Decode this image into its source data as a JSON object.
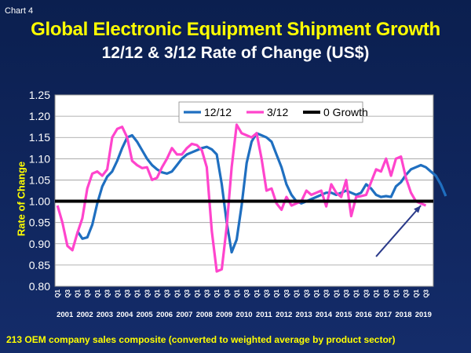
{
  "header": {
    "chart_label": "Chart 4",
    "title": "Global Electronic Equipment Shipment Growth",
    "subtitle": "12/12 & 3/12 Rate of Change (US$)"
  },
  "footnote": "213 OEM company sales composite (converted to weighted average by product sector)",
  "colors": {
    "s1212": "#1f6fc0",
    "s312": "#ff44cc",
    "zero": "#000000",
    "arrow": "#2a3a8a",
    "plot_bg": "#ffffff"
  },
  "chart_data": {
    "type": "line",
    "ylabel": "Rate of Change",
    "ylim": [
      0.8,
      1.25
    ],
    "yticks": [
      "0.80",
      "0.85",
      "0.90",
      "0.95",
      "1.00",
      "1.05",
      "1.10",
      "1.15",
      "1.20",
      "1.25"
    ],
    "quarter_labels": [
      "Q1",
      "Q3"
    ],
    "years": [
      "2001",
      "2002",
      "2003",
      "2004",
      "2005",
      "2006",
      "2007",
      "2008",
      "2009",
      "2010",
      "2011",
      "2012",
      "2013",
      "2014",
      "2015",
      "2016",
      "2017",
      "2018",
      "2019"
    ],
    "x_start": "2001 Q1",
    "legend": {
      "position": "top-right"
    },
    "series": [
      {
        "name": "12/12",
        "color_key": "s1212",
        "start_index": 4,
        "values": [
          0.93,
          0.912,
          0.915,
          0.945,
          0.995,
          1.035,
          1.058,
          1.07,
          1.095,
          1.125,
          1.15,
          1.155,
          1.14,
          1.12,
          1.1,
          1.085,
          1.075,
          1.068,
          1.065,
          1.07,
          1.085,
          1.1,
          1.11,
          1.115,
          1.12,
          1.125,
          1.128,
          1.122,
          1.11,
          1.04,
          0.95,
          0.88,
          0.91,
          0.99,
          1.09,
          1.14,
          1.16,
          1.155,
          1.15,
          1.14,
          1.11,
          1.08,
          1.04,
          1.015,
          1.0,
          0.995,
          1.0,
          1.005,
          1.01,
          1.015,
          1.02,
          1.02,
          1.015,
          1.02,
          1.025,
          1.02,
          1.015,
          1.02,
          1.04,
          1.03,
          1.015,
          1.01,
          1.012,
          1.01,
          1.035,
          1.045,
          1.062,
          1.075,
          1.08,
          1.085,
          1.08,
          1.07,
          1.06,
          1.04,
          1.012
        ]
      },
      {
        "name": "3/12",
        "color_key": "s312",
        "start_index": 0,
        "values": [
          0.99,
          0.95,
          0.895,
          0.885,
          0.925,
          0.96,
          1.03,
          1.065,
          1.07,
          1.06,
          1.075,
          1.15,
          1.17,
          1.175,
          1.15,
          1.095,
          1.085,
          1.078,
          1.08,
          1.05,
          1.055,
          1.08,
          1.1,
          1.125,
          1.11,
          1.11,
          1.125,
          1.135,
          1.132,
          1.12,
          1.08,
          0.93,
          0.835,
          0.84,
          0.94,
          1.08,
          1.18,
          1.16,
          1.155,
          1.15,
          1.16,
          1.1,
          1.025,
          1.03,
          0.995,
          0.98,
          1.01,
          0.99,
          0.995,
          1.0,
          1.025,
          1.015,
          1.02,
          1.025,
          0.988,
          1.04,
          1.02,
          1.01,
          1.05,
          0.965,
          1.01,
          1.012,
          1.015,
          1.045,
          1.075,
          1.07,
          1.1,
          1.06,
          1.1,
          1.105,
          1.055,
          1.02,
          1.0,
          0.995,
          0.99
        ]
      },
      {
        "name": "0 Growth",
        "color_key": "zero",
        "constant": 1.0
      }
    ],
    "annotation": {
      "type": "arrow",
      "from": [
        "2017 Q1",
        0.87
      ],
      "to": [
        "2019 Q2",
        0.99
      ]
    }
  }
}
